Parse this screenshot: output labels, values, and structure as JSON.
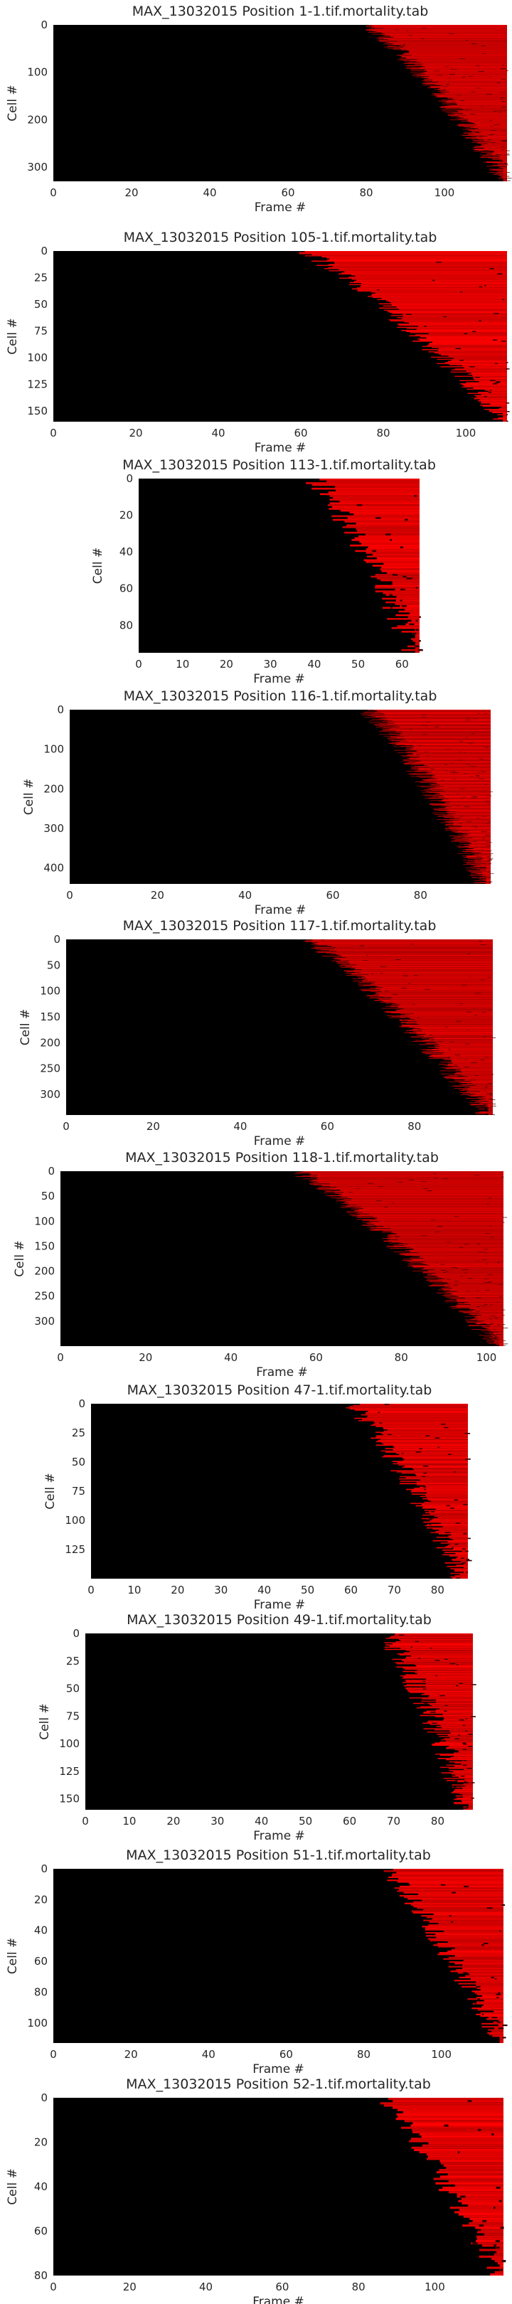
{
  "chart_data": [
    {
      "type": "heatmap",
      "title": "MAX_13032015 Position 1-1.tif.mortality.tab",
      "xlabel": "Frame #",
      "ylabel": "Cell #",
      "n_frames": 116,
      "n_cells": 330,
      "xticks": [
        0,
        20,
        40,
        60,
        80,
        100
      ],
      "yticks": [
        0,
        100,
        200,
        300
      ],
      "colormap": [
        "#000000",
        "#ff0000"
      ],
      "onset_frame_first": 80,
      "onset_frame_last": 116
    },
    {
      "type": "heatmap",
      "title": "MAX_13032015 Position 105-1.tif.mortality.tab",
      "xlabel": "Frame #",
      "ylabel": "Cell #",
      "n_frames": 110,
      "n_cells": 160,
      "xticks": [
        0,
        20,
        40,
        60,
        80,
        100
      ],
      "yticks": [
        0,
        25,
        50,
        75,
        100,
        125,
        150
      ],
      "colormap": [
        "#000000",
        "#ff0000"
      ],
      "onset_frame_first": 60,
      "onset_frame_last": 110
    },
    {
      "type": "heatmap",
      "title": "MAX_13032015 Position 113-1.tif.mortality.tab",
      "xlabel": "Frame #",
      "ylabel": "Cell #",
      "n_frames": 64,
      "n_cells": 95,
      "xticks": [
        0,
        10,
        20,
        30,
        40,
        50,
        60
      ],
      "yticks": [
        0,
        20,
        40,
        60,
        80
      ],
      "colormap": [
        "#000000",
        "#ff0000"
      ],
      "onset_frame_first": 40,
      "onset_frame_last": 63
    },
    {
      "type": "heatmap",
      "title": "MAX_13032015 Position 116-1.tif.mortality.tab",
      "xlabel": "Frame #",
      "ylabel": "Cell #",
      "n_frames": 96,
      "n_cells": 440,
      "xticks": [
        0,
        20,
        40,
        60,
        80
      ],
      "yticks": [
        0,
        100,
        200,
        300,
        400
      ],
      "colormap": [
        "#000000",
        "#ff0000"
      ],
      "onset_frame_first": 68,
      "onset_frame_last": 95
    },
    {
      "type": "heatmap",
      "title": "MAX_13032015 Position 117-1.tif.mortality.tab",
      "xlabel": "Frame #",
      "ylabel": "Cell #",
      "n_frames": 98,
      "n_cells": 340,
      "xticks": [
        0,
        20,
        40,
        60,
        80
      ],
      "yticks": [
        0,
        50,
        100,
        150,
        200,
        250,
        300
      ],
      "colormap": [
        "#000000",
        "#ff0000"
      ],
      "onset_frame_first": 55,
      "onset_frame_last": 97
    },
    {
      "type": "heatmap",
      "title": "MAX_13032015 Position 118-1.tif.mortality.tab",
      "xlabel": "Frame #",
      "ylabel": "Cell #",
      "n_frames": 104,
      "n_cells": 350,
      "xticks": [
        0,
        20,
        40,
        60,
        80,
        100
      ],
      "yticks": [
        0,
        50,
        100,
        150,
        200,
        250,
        300
      ],
      "colormap": [
        "#000000",
        "#ff0000"
      ],
      "onset_frame_first": 55,
      "onset_frame_last": 103
    },
    {
      "type": "heatmap",
      "title": "MAX_13032015 Position 47-1.tif.mortality.tab",
      "xlabel": "Frame #",
      "ylabel": "Cell #",
      "n_frames": 87,
      "n_cells": 150,
      "xticks": [
        0,
        10,
        20,
        30,
        40,
        50,
        60,
        70,
        80
      ],
      "yticks": [
        0,
        25,
        50,
        75,
        100,
        125
      ],
      "colormap": [
        "#000000",
        "#ff0000"
      ],
      "onset_frame_first": 60,
      "onset_frame_last": 86
    },
    {
      "type": "heatmap",
      "title": "MAX_13032015 Position 49-1.tif.mortality.tab",
      "xlabel": "Frame #",
      "ylabel": "Cell #",
      "n_frames": 88,
      "n_cells": 160,
      "xticks": [
        0,
        10,
        20,
        30,
        40,
        50,
        60,
        70,
        80
      ],
      "yticks": [
        0,
        25,
        50,
        75,
        100,
        125,
        150
      ],
      "colormap": [
        "#000000",
        "#ff0000"
      ],
      "onset_frame_first": 68,
      "onset_frame_last": 87
    },
    {
      "type": "heatmap",
      "title": "MAX_13032015 Position 51-1.tif.mortality.tab",
      "xlabel": "Frame #",
      "ylabel": "Cell #",
      "n_frames": 116,
      "n_cells": 113,
      "xticks": [
        0,
        20,
        40,
        60,
        80,
        100
      ],
      "yticks": [
        0,
        20,
        40,
        60,
        80,
        100
      ],
      "colormap": [
        "#000000",
        "#ff0000"
      ],
      "onset_frame_first": 85,
      "onset_frame_last": 115
    },
    {
      "type": "heatmap",
      "title": "MAX_13032015 Position 52-1.tif.mortality.tab",
      "xlabel": "Frame #",
      "ylabel": "Cell #",
      "n_frames": 118,
      "n_cells": 80,
      "xticks": [
        0,
        20,
        40,
        60,
        80,
        100
      ],
      "yticks": [
        0,
        20,
        40,
        60,
        80
      ],
      "colormap": [
        "#000000",
        "#ff0000"
      ],
      "onset_frame_first": 85,
      "onset_frame_last": 117
    }
  ]
}
